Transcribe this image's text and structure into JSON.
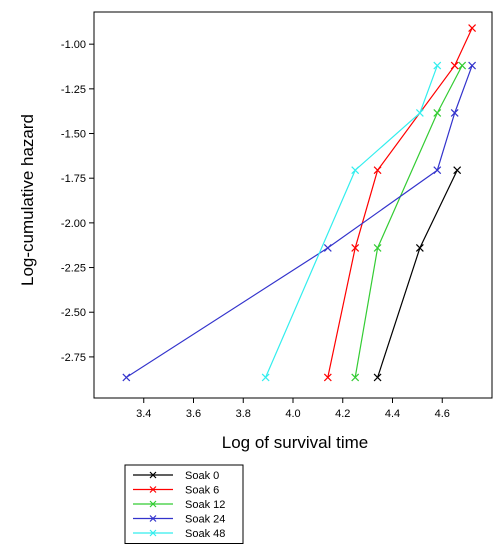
{
  "chart_data": {
    "type": "line",
    "title": "",
    "xlabel": "Log of survival time",
    "ylabel": "Log-cumulative hazard",
    "xlim": [
      3.2,
      4.8
    ],
    "ylim": [
      -2.98,
      -0.82
    ],
    "xticks": [
      3.4,
      3.6,
      3.8,
      4.0,
      4.2,
      4.4,
      4.6
    ],
    "xtick_labels": [
      "3.4",
      "3.6",
      "3.8",
      "4.0",
      "4.2",
      "4.4",
      "4.6"
    ],
    "yticks": [
      -1.0,
      -1.25,
      -1.5,
      -1.75,
      -2.0,
      -2.25,
      -2.5,
      -2.75
    ],
    "ytick_labels": [
      "-1.00",
      "-1.25",
      "-1.50",
      "-1.75",
      "-2.00",
      "-2.25",
      "-2.50",
      "-2.75"
    ],
    "grid": false,
    "legend_position": "bottom-left, below plot",
    "series": [
      {
        "name": "Soak 0",
        "color": "#000000",
        "x": [
          4.34,
          4.51,
          4.66
        ],
        "y": [
          -2.865,
          -2.14,
          -1.705
        ]
      },
      {
        "name": "Soak 6",
        "color": "#ff0000",
        "x": [
          4.14,
          4.25,
          4.34,
          4.65,
          4.72
        ],
        "y": [
          -2.865,
          -2.14,
          -1.705,
          -1.12,
          -0.91
        ]
      },
      {
        "name": "Soak 12",
        "color": "#33cc33",
        "x": [
          4.25,
          4.34,
          4.58,
          4.68
        ],
        "y": [
          -2.865,
          -2.14,
          -1.385,
          -1.12
        ]
      },
      {
        "name": "Soak 24",
        "color": "#3333cc",
        "x": [
          3.33,
          4.14,
          4.58,
          4.65,
          4.72
        ],
        "y": [
          -2.865,
          -2.14,
          -1.705,
          -1.385,
          -1.12
        ]
      },
      {
        "name": "Soak 48",
        "color": "#33eeee",
        "x": [
          3.89,
          4.25,
          4.51,
          4.58
        ],
        "y": [
          -2.865,
          -1.705,
          -1.385,
          -1.12
        ]
      }
    ]
  }
}
